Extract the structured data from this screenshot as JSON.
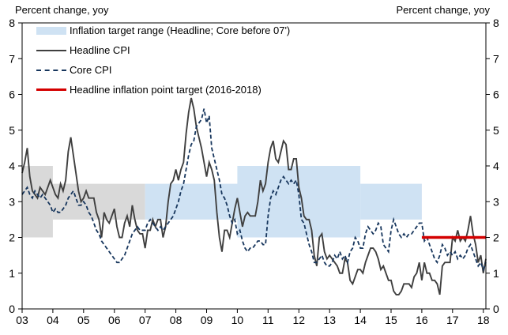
{
  "header": {
    "left_axis_title": "Percent change, yoy",
    "right_axis_title": "Percent change, yoy"
  },
  "colors": {
    "headline_line": "#3f3f3f",
    "core_line": "#17365d",
    "point_target": "#d40000",
    "band_blue": "#cfe2f3",
    "band_gray": "#d9d9d9",
    "axis": "#000000"
  },
  "chart_data": {
    "type": "line",
    "title": "",
    "ylabel_left": "Percent change, yoy",
    "ylabel_right": "Percent change, yoy",
    "grid": false,
    "legend_position": "top-left",
    "x_domain": [
      2003,
      2018.0833
    ],
    "ylim": [
      0,
      8
    ],
    "y_ticks": [
      0,
      1,
      2,
      3,
      4,
      5,
      6,
      7,
      8
    ],
    "y_tick_labels": [
      "0",
      "1",
      "2",
      "3",
      "4",
      "5",
      "6",
      "7",
      "8"
    ],
    "x_ticks": {
      "values": [
        2003,
        2004,
        2005,
        2006,
        2007,
        2008,
        2009,
        2010,
        2011,
        2012,
        2013,
        2014,
        2015,
        2016,
        2017,
        2018
      ],
      "labels": [
        "03",
        "04",
        "05",
        "06",
        "07",
        "08",
        "09",
        "10",
        "11",
        "12",
        "13",
        "14",
        "15",
        "16",
        "17",
        "18"
      ]
    },
    "x_start": 2003.0,
    "x_step_months": 1,
    "legend": [
      {
        "label": "Inflation target range (Headline; Core before 07')",
        "swatch": "band",
        "color": "#cfe2f3"
      },
      {
        "label": "Headline CPI",
        "swatch": "solid-line",
        "color": "#3f3f3f"
      },
      {
        "label": "Core CPI",
        "swatch": "dashed-line",
        "color": "#17365d"
      },
      {
        "label": "Headline inflation point target (2016-2018)",
        "swatch": "thick-line",
        "color": "#d40000"
      }
    ],
    "bands": [
      {
        "x_from": 2003.0,
        "x_to": 2004.0,
        "low": 2.0,
        "high": 4.0,
        "color": "#d9d9d9"
      },
      {
        "x_from": 2004.0,
        "x_to": 2007.0,
        "low": 2.5,
        "high": 3.5,
        "color": "#d9d9d9"
      },
      {
        "x_from": 2007.0,
        "x_to": 2010.0,
        "low": 2.5,
        "high": 3.5,
        "color": "#cfe2f3"
      },
      {
        "x_from": 2010.0,
        "x_to": 2014.0,
        "low": 2.0,
        "high": 4.0,
        "color": "#cfe2f3"
      },
      {
        "x_from": 2014.0,
        "x_to": 2016.0,
        "low": 2.5,
        "high": 3.5,
        "color": "#cfe2f3"
      }
    ],
    "point_target": {
      "x_from": 2016.0,
      "x_to": 2018.0833,
      "value": 2.0,
      "color": "#d40000"
    },
    "series": [
      {
        "name": "Headline CPI",
        "style": "solid",
        "color": "#3f3f3f",
        "data_name": "headline-cpi-line",
        "values": [
          3.8,
          4.1,
          4.5,
          3.7,
          3.3,
          3.2,
          3.1,
          3.4,
          3.3,
          3.2,
          3.4,
          3.6,
          3.4,
          3.2,
          3.1,
          3.5,
          3.3,
          3.6,
          4.4,
          4.8,
          4.3,
          3.8,
          3.3,
          3.0,
          3.1,
          3.3,
          3.1,
          3.1,
          3.1,
          2.7,
          2.5,
          2.0,
          2.7,
          2.5,
          2.4,
          2.6,
          2.8,
          2.3,
          2.0,
          2.0,
          2.4,
          2.6,
          2.3,
          2.9,
          2.5,
          2.2,
          2.1,
          2.1,
          1.7,
          2.2,
          2.2,
          2.5,
          2.3,
          2.5,
          2.5,
          2.0,
          2.3,
          3.0,
          3.5,
          3.6,
          3.9,
          3.6,
          3.9,
          4.1,
          4.9,
          5.5,
          5.9,
          5.6,
          5.1,
          4.8,
          4.5,
          4.1,
          3.7,
          4.1,
          3.9,
          3.6,
          2.7,
          2.0,
          1.6,
          2.2,
          2.2,
          2.0,
          2.4,
          2.8,
          3.1,
          2.7,
          2.3,
          2.6,
          2.7,
          2.6,
          2.6,
          2.6,
          3.0,
          3.6,
          3.3,
          3.5,
          4.1,
          4.5,
          4.7,
          4.2,
          4.1,
          4.4,
          4.7,
          4.6,
          3.9,
          3.9,
          4.2,
          4.2,
          3.4,
          3.1,
          2.6,
          2.5,
          2.5,
          2.2,
          1.5,
          1.2,
          2.0,
          2.1,
          1.6,
          1.4,
          1.5,
          1.4,
          1.3,
          1.2,
          1.0,
          1.0,
          1.4,
          1.3,
          0.8,
          0.7,
          0.9,
          1.1,
          1.1,
          1.0,
          1.3,
          1.5,
          1.7,
          1.7,
          1.6,
          1.4,
          1.1,
          1.2,
          1.0,
          0.8,
          0.8,
          0.5,
          0.4,
          0.4,
          0.5,
          0.7,
          0.7,
          0.7,
          0.6,
          0.9,
          1.0,
          1.3,
          0.8,
          1.3,
          1.0,
          1.0,
          0.8,
          0.8,
          0.7,
          0.4,
          1.2,
          1.3,
          1.3,
          1.3,
          2.0,
          1.9,
          2.2,
          1.9,
          2.0,
          1.9,
          2.2,
          2.6,
          2.1,
          1.8,
          1.3,
          1.5,
          1.0,
          1.4
        ]
      },
      {
        "name": "Core CPI",
        "style": "dashed",
        "color": "#17365d",
        "data_name": "core-cpi-line",
        "values": [
          3.2,
          3.3,
          3.4,
          3.2,
          3.1,
          3.3,
          3.2,
          3.1,
          3.2,
          3.1,
          3.0,
          2.9,
          2.7,
          2.8,
          2.7,
          2.7,
          2.8,
          2.9,
          3.1,
          3.2,
          3.3,
          3.1,
          2.9,
          2.9,
          3.0,
          2.9,
          2.7,
          2.6,
          2.4,
          2.2,
          2.1,
          1.9,
          1.8,
          1.7,
          1.6,
          1.5,
          1.4,
          1.3,
          1.3,
          1.4,
          1.5,
          1.7,
          1.9,
          2.1,
          2.2,
          2.3,
          2.2,
          2.2,
          2.2,
          2.4,
          2.5,
          2.4,
          2.3,
          2.2,
          2.3,
          2.2,
          2.3,
          2.4,
          2.5,
          2.6,
          2.8,
          3.0,
          3.3,
          3.5,
          3.9,
          4.3,
          4.6,
          4.7,
          5.1,
          5.2,
          5.3,
          5.6,
          5.2,
          5.4,
          4.5,
          4.2,
          3.9,
          3.6,
          3.2,
          3.1,
          2.9,
          2.6,
          2.4,
          2.5,
          2.1,
          2.2,
          1.9,
          1.7,
          1.6,
          1.7,
          1.7,
          1.8,
          1.9,
          1.9,
          1.8,
          1.8,
          2.6,
          3.1,
          3.3,
          3.2,
          3.4,
          3.6,
          3.7,
          3.6,
          3.5,
          3.6,
          3.5,
          3.6,
          3.2,
          2.5,
          2.4,
          2.1,
          1.8,
          1.6,
          1.3,
          1.3,
          1.4,
          1.5,
          1.3,
          1.2,
          1.2,
          1.3,
          1.5,
          1.4,
          1.6,
          1.4,
          1.5,
          1.3,
          1.6,
          1.7,
          2.0,
          1.9,
          1.7,
          1.7,
          2.1,
          2.3,
          2.2,
          2.1,
          2.2,
          2.4,
          2.3,
          1.8,
          1.7,
          1.6,
          2.2,
          2.5,
          2.3,
          2.1,
          2.0,
          2.1,
          2.0,
          2.1,
          2.1,
          2.2,
          2.3,
          2.4,
          2.4,
          1.9,
          2.0,
          1.8,
          1.6,
          1.4,
          1.3,
          1.5,
          1.8,
          1.7,
          1.5,
          1.6,
          1.5,
          1.6,
          1.4,
          1.5,
          1.4,
          1.5,
          1.7,
          1.8,
          1.6,
          1.4,
          1.2,
          1.3,
          1.1,
          1.3
        ]
      }
    ]
  }
}
